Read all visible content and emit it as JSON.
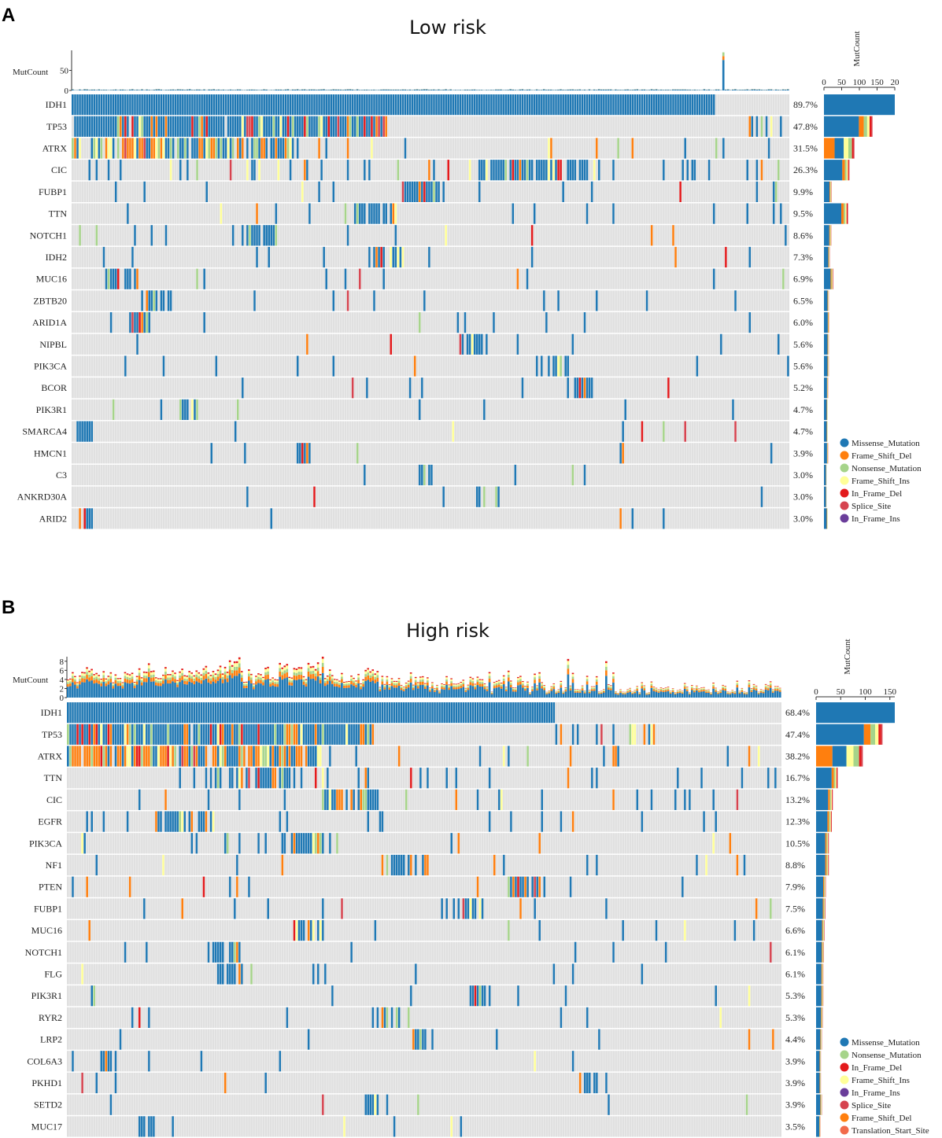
{
  "colors": {
    "Missense_Mutation": "#1f78b4",
    "Frame_Shift_Del": "#ff7f0e",
    "Nonsense_Mutation": "#a6d48a",
    "Frame_Shift_Ins": "#ffff99",
    "In_Frame_Del": "#e31a1c",
    "Splice_Site": "#d6434f",
    "In_Frame_Ins": "#6a3d9a",
    "Translation_Start_Site": "#f26b4b",
    "background": "#e0e0e0"
  },
  "chart_data": [
    {
      "type": "heatmap",
      "panel_label": "A",
      "title": "Low risk",
      "samples": 300,
      "mutcount_label": "MutCount",
      "mutcount_ticks": [
        "0",
        "50"
      ],
      "mutcount_ylim": [
        0,
        100
      ],
      "side_axis_label": "MutCount",
      "side_ticks": [
        "0",
        "50",
        "100",
        "150",
        "20"
      ],
      "side_xlim": [
        0,
        200
      ],
      "genes": [
        {
          "name": "IDH1",
          "pct": "89.7%",
          "total": 200
        },
        {
          "name": "TP53",
          "pct": "47.8%",
          "total": 137
        },
        {
          "name": "ATRX",
          "pct": "31.5%",
          "total": 86
        },
        {
          "name": "CIC",
          "pct": "26.3%",
          "total": 72
        },
        {
          "name": "FUBP1",
          "pct": "9.9%",
          "total": 22
        },
        {
          "name": "TTN",
          "pct": "9.5%",
          "total": 68
        },
        {
          "name": "NOTCH1",
          "pct": "8.6%",
          "total": 21
        },
        {
          "name": "IDH2",
          "pct": "7.3%",
          "total": 17
        },
        {
          "name": "MUC16",
          "pct": "6.9%",
          "total": 26
        },
        {
          "name": "ZBTB20",
          "pct": "6.5%",
          "total": 14
        },
        {
          "name": "ARID1A",
          "pct": "6.0%",
          "total": 15
        },
        {
          "name": "NIPBL",
          "pct": "5.6%",
          "total": 14
        },
        {
          "name": "PIK3CA",
          "pct": "5.6%",
          "total": 14
        },
        {
          "name": "BCOR",
          "pct": "5.2%",
          "total": 12
        },
        {
          "name": "PIK3R1",
          "pct": "4.7%",
          "total": 11
        },
        {
          "name": "SMARCA4",
          "pct": "4.7%",
          "total": 11
        },
        {
          "name": "HMCN1",
          "pct": "3.9%",
          "total": 12
        },
        {
          "name": "C3",
          "pct": "3.0%",
          "total": 8
        },
        {
          "name": "ANKRD30A",
          "pct": "3.0%",
          "total": 8
        },
        {
          "name": "ARID2",
          "pct": "3.0%",
          "total": 11
        }
      ],
      "legend": [
        "Missense_Mutation",
        "Frame_Shift_Del",
        "Nonsense_Mutation",
        "Frame_Shift_Ins",
        "In_Frame_Del",
        "Splice_Site",
        "In_Frame_Ins"
      ]
    },
    {
      "type": "heatmap",
      "panel_label": "B",
      "title": "High risk",
      "samples": 300,
      "mutcount_label": "MutCount",
      "mutcount_ticks": [
        "0",
        "2",
        "4",
        "6",
        "8"
      ],
      "mutcount_ylim": [
        0,
        9
      ],
      "side_axis_label": "MutCount",
      "side_ticks": [
        "0",
        "50",
        "100",
        "150"
      ],
      "side_xlim": [
        0,
        160
      ],
      "genes": [
        {
          "name": "IDH1",
          "pct": "68.4%",
          "total": 160
        },
        {
          "name": "TP53",
          "pct": "47.4%",
          "total": 135
        },
        {
          "name": "ATRX",
          "pct": "38.2%",
          "total": 95
        },
        {
          "name": "TTN",
          "pct": "16.7%",
          "total": 44
        },
        {
          "name": "CIC",
          "pct": "13.2%",
          "total": 34
        },
        {
          "name": "EGFR",
          "pct": "12.3%",
          "total": 32
        },
        {
          "name": "PIK3CA",
          "pct": "10.5%",
          "total": 26
        },
        {
          "name": "NF1",
          "pct": "8.8%",
          "total": 26
        },
        {
          "name": "PTEN",
          "pct": "7.9%",
          "total": 20
        },
        {
          "name": "FUBP1",
          "pct": "7.5%",
          "total": 19
        },
        {
          "name": "MUC16",
          "pct": "6.6%",
          "total": 17
        },
        {
          "name": "NOTCH1",
          "pct": "6.1%",
          "total": 16
        },
        {
          "name": "FLG",
          "pct": "6.1%",
          "total": 15
        },
        {
          "name": "PIK3R1",
          "pct": "5.3%",
          "total": 15
        },
        {
          "name": "RYR2",
          "pct": "5.3%",
          "total": 14
        },
        {
          "name": "LRP2",
          "pct": "4.4%",
          "total": 12
        },
        {
          "name": "COL6A3",
          "pct": "3.9%",
          "total": 10
        },
        {
          "name": "PKHD1",
          "pct": "3.9%",
          "total": 10
        },
        {
          "name": "SETD2",
          "pct": "3.9%",
          "total": 12
        },
        {
          "name": "MUC17",
          "pct": "3.5%",
          "total": 9
        }
      ],
      "legend": [
        "Missense_Mutation",
        "Nonsense_Mutation",
        "In_Frame_Del",
        "Frame_Shift_Ins",
        "In_Frame_Ins",
        "Splice_Site",
        "Frame_Shift_Del",
        "Translation_Start_Site"
      ]
    }
  ]
}
